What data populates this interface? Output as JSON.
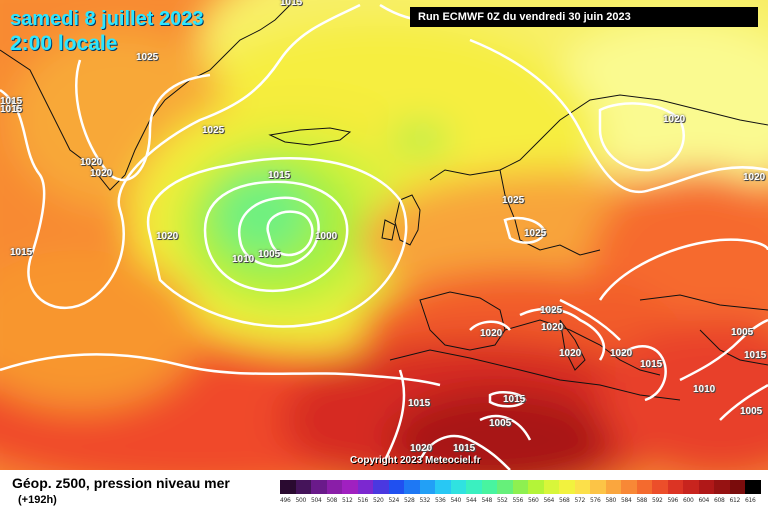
{
  "header": {
    "date": "samedi 8 juillet 2023",
    "time": "2:00 locale",
    "run": "Run ECMWF 0Z du vendredi 30 juin 2023"
  },
  "copyright": "Copyright 2023 Meteociel.fr",
  "footer": {
    "title": "Géop. z500, pression niveau mer",
    "step": "(+192h)"
  },
  "map": {
    "isobar_labels": [
      "1015",
      "1025",
      "1025",
      "1015",
      "1015",
      "1020",
      "1020",
      "1015",
      "1020",
      "1005",
      "1010",
      "1015",
      "1000",
      "1025",
      "1025",
      "1025",
      "1020",
      "1020",
      "1020",
      "1015",
      "1020",
      "1020",
      "1005",
      "1015",
      "1005",
      "1010",
      "1015",
      "1015",
      "1020",
      "1015",
      "1005",
      "1020"
    ],
    "colors": {
      "isobar": "#ffffff",
      "coast": "#000000"
    }
  },
  "legend": {
    "labels": [
      "496",
      "500",
      "504",
      "508",
      "512",
      "516",
      "520",
      "524",
      "528",
      "532",
      "536",
      "540",
      "544",
      "548",
      "552",
      "556",
      "560",
      "564",
      "568",
      "572",
      "576",
      "580",
      "584",
      "588",
      "592",
      "596",
      "600",
      "604",
      "608",
      "612",
      "616"
    ],
    "colors": [
      "#2a0a30",
      "#45145a",
      "#6a1a8a",
      "#8a1ea8",
      "#a020c0",
      "#7c28d0",
      "#4a38e0",
      "#2050f0",
      "#1e78f4",
      "#22a0f6",
      "#28c8f4",
      "#30e2e0",
      "#3af0c0",
      "#48f4a0",
      "#66f07a",
      "#8ef050",
      "#b4f438",
      "#d8f63a",
      "#f2f23e",
      "#fce04a",
      "#fcc446",
      "#faa63e",
      "#f88836",
      "#f46a2e",
      "#ec4e2a",
      "#dc3424",
      "#c8241e",
      "#b01818",
      "#961212",
      "#7a0c0c",
      "#000000"
    ]
  }
}
